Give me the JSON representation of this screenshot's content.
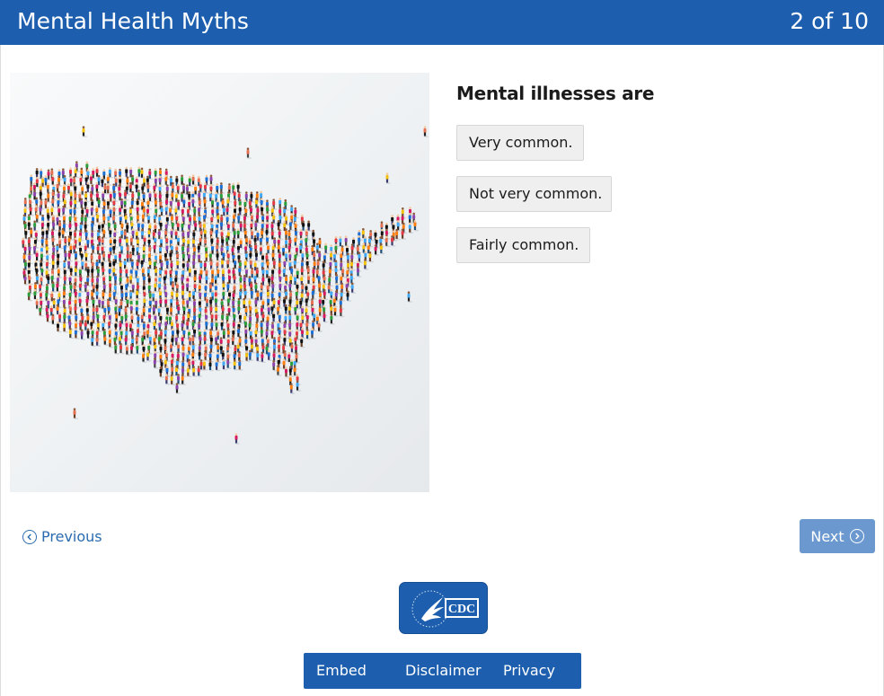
{
  "header": {
    "title": "Mental Health Myths",
    "progress": "2 of 10"
  },
  "question": "Mental illnesses are",
  "options": [
    {
      "label": "Very common."
    },
    {
      "label": "Not very common."
    },
    {
      "label": "Fairly common."
    }
  ],
  "nav": {
    "previous": "Previous",
    "next": "Next"
  },
  "logo": {
    "text": "CDC"
  },
  "footer": {
    "links": [
      "Embed",
      "Disclaimer",
      "Privacy"
    ]
  },
  "colors": {
    "brand": "#1d5fae",
    "next_button": "#6b99cf",
    "option_bg": "#efefef"
  },
  "image": {
    "subject": "crowd of people forming a map of the United States"
  }
}
